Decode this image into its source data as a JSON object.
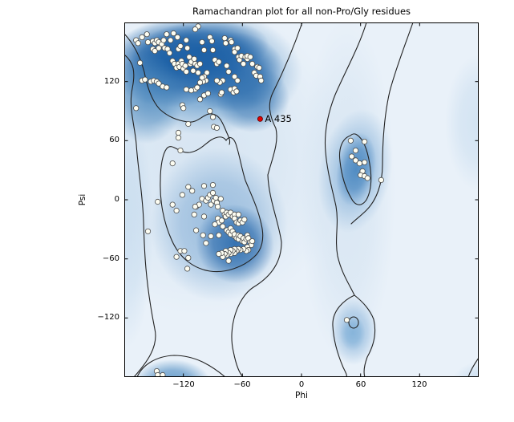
{
  "title": "Ramachandran plot for all non-Pro/Gly residues",
  "axes": {
    "xlabel": "Phi",
    "ylabel": "Psi",
    "xlim": [
      -180,
      180
    ],
    "ylim": [
      -180,
      180
    ],
    "xticks": [
      -120,
      -60,
      0,
      60,
      120
    ],
    "yticks": [
      120,
      60,
      0,
      -60,
      -120
    ],
    "xtick_labels": [
      "−120",
      "−60",
      "0",
      "60",
      "120"
    ],
    "ytick_labels": [
      "120",
      "60",
      "0",
      "−60",
      "−120"
    ]
  },
  "colors": {
    "marker_fill": "#fdfdf2",
    "marker_edge": "#4d4d4d",
    "outlier_fill": "#e00000",
    "outlier_edge": "#5a0000",
    "contour_line": "#222222",
    "density_dark": "#1d61a6",
    "density_light": "#e9f1f9",
    "spine": "#000000"
  },
  "chart_data": {
    "type": "scatter",
    "title": "Ramachandran plot for all non-Pro/Gly residues",
    "xlabel": "Phi",
    "ylabel": "Psi",
    "xlim": [
      -180,
      180
    ],
    "ylim": [
      -180,
      180
    ],
    "background": "blue kernel-density (Blues colormap) of favored regions with two contour levels",
    "legend": "none",
    "series": [
      {
        "name": "non-Pro/Gly residues",
        "marker": "circle",
        "points": [
          [
            -168,
            162
          ],
          [
            -166,
            159
          ],
          [
            -162,
            165
          ],
          [
            -157,
            168
          ],
          [
            -156,
            160
          ],
          [
            -151,
            161
          ],
          [
            -149,
            159
          ],
          [
            -147,
            162
          ],
          [
            -145,
            160
          ],
          [
            -142,
            158
          ],
          [
            -140,
            162
          ],
          [
            -137,
            168
          ],
          [
            -133,
            162
          ],
          [
            -130,
            169
          ],
          [
            -126,
            165
          ],
          [
            -125,
            153
          ],
          [
            -123,
            156
          ],
          [
            -151,
            153
          ],
          [
            -149,
            151
          ],
          [
            -145,
            154
          ],
          [
            -139,
            154
          ],
          [
            -136,
            153
          ],
          [
            -134,
            149
          ],
          [
            -131,
            141
          ],
          [
            -129,
            138
          ],
          [
            -127,
            134
          ],
          [
            -125,
            138
          ],
          [
            -124,
            135
          ],
          [
            -122,
            141
          ],
          [
            -121,
            138
          ],
          [
            -120,
            133
          ],
          [
            -118,
            136
          ],
          [
            -117,
            130
          ],
          [
            -116,
            154
          ],
          [
            -114,
            145
          ],
          [
            -113,
            138
          ],
          [
            -112,
            140
          ],
          [
            -110,
            131
          ],
          [
            -109,
            143
          ],
          [
            -108,
            138
          ],
          [
            -106,
            136
          ],
          [
            -105,
            129
          ],
          [
            -103,
            138
          ],
          [
            -117,
            162
          ],
          [
            -101,
            160
          ],
          [
            -99,
            152
          ],
          [
            -93,
            165
          ],
          [
            -91,
            161
          ],
          [
            -90,
            152
          ],
          [
            -88,
            142
          ],
          [
            -86,
            138
          ],
          [
            -84,
            140
          ],
          [
            -78,
            164
          ],
          [
            -77,
            159
          ],
          [
            -72,
            162
          ],
          [
            -71,
            160
          ],
          [
            -68,
            153
          ],
          [
            -68,
            150
          ],
          [
            -65,
            154
          ],
          [
            -64,
            145
          ],
          [
            -63,
            142
          ],
          [
            -61,
            146
          ],
          [
            -59,
            138
          ],
          [
            -57,
            145
          ],
          [
            -55,
            143
          ],
          [
            -55,
            146
          ],
          [
            -52,
            145
          ],
          [
            -50,
            138
          ],
          [
            -48,
            129
          ],
          [
            -46,
            126
          ],
          [
            -45,
            135
          ],
          [
            -43,
            134
          ],
          [
            -42,
            125
          ],
          [
            -41,
            121
          ],
          [
            -68,
            125
          ],
          [
            -65,
            121
          ],
          [
            -74,
            130
          ],
          [
            -76,
            136
          ],
          [
            -80,
            121
          ],
          [
            -83,
            119
          ],
          [
            -86,
            121
          ],
          [
            -96,
            129
          ],
          [
            -97,
            121
          ],
          [
            -99,
            125
          ],
          [
            -100,
            120
          ],
          [
            -101,
            124
          ],
          [
            -103,
            119
          ],
          [
            -108,
            112
          ],
          [
            -106,
            114
          ],
          [
            -112,
            111
          ],
          [
            -117,
            112
          ],
          [
            -121,
            96
          ],
          [
            -120,
            93
          ],
          [
            -93,
            90
          ],
          [
            -90,
            84
          ],
          [
            -89,
            74
          ],
          [
            -103,
            102
          ],
          [
            -99,
            106
          ],
          [
            -95,
            108
          ],
          [
            -82,
            107
          ],
          [
            -81,
            109
          ],
          [
            -72,
            112
          ],
          [
            -69,
            109
          ],
          [
            -68,
            113
          ],
          [
            -66,
            110
          ],
          [
            -164,
            139
          ],
          [
            -162,
            121
          ],
          [
            -159,
            122
          ],
          [
            -153,
            120
          ],
          [
            -150,
            121
          ],
          [
            -147,
            120
          ],
          [
            -145,
            118
          ],
          [
            -141,
            115
          ],
          [
            -137,
            114
          ],
          [
            -168,
            93
          ],
          [
            -115,
            77
          ],
          [
            -86,
            73
          ],
          [
            -105,
            176
          ],
          [
            -108,
            173
          ],
          [
            -125,
            68
          ],
          [
            -125,
            63
          ],
          [
            -123,
            50
          ],
          [
            -131,
            37
          ],
          [
            -115,
            13
          ],
          [
            -99,
            14
          ],
          [
            -90,
            15
          ],
          [
            -121,
            5
          ],
          [
            -111,
            9
          ],
          [
            -101,
            1
          ],
          [
            -97,
            -1
          ],
          [
            -95,
            2
          ],
          [
            -93,
            5
          ],
          [
            -92,
            -5
          ],
          [
            -90,
            7
          ],
          [
            -89,
            -1
          ],
          [
            -87,
            2
          ],
          [
            -86,
            -3
          ],
          [
            -85,
            -7
          ],
          [
            -82,
            1
          ],
          [
            -80,
            -11
          ],
          [
            -78,
            -15
          ],
          [
            -77,
            -17
          ],
          [
            -76,
            -13
          ],
          [
            -74,
            -15
          ],
          [
            -72,
            -13
          ],
          [
            -70,
            -17
          ],
          [
            -68,
            -15
          ],
          [
            -68,
            -19
          ],
          [
            -66,
            -23
          ],
          [
            -64,
            -15
          ],
          [
            -64,
            -24
          ],
          [
            -62,
            -21
          ],
          [
            -60,
            -23
          ],
          [
            -58,
            -20
          ],
          [
            -107,
            -7
          ],
          [
            -109,
            -15
          ],
          [
            -99,
            -17
          ],
          [
            -85,
            -19
          ],
          [
            -84,
            -23
          ],
          [
            -81,
            -21
          ],
          [
            -88,
            -25
          ],
          [
            -80,
            -27
          ],
          [
            -76,
            -31
          ],
          [
            -74,
            -33
          ],
          [
            -72,
            -29
          ],
          [
            -72,
            -35
          ],
          [
            -70,
            -32
          ],
          [
            -68,
            -37
          ],
          [
            -68,
            -35
          ],
          [
            -66,
            -39
          ],
          [
            -64,
            -36
          ],
          [
            -64,
            -40
          ],
          [
            -62,
            -37
          ],
          [
            -60,
            -42
          ],
          [
            -59,
            -39
          ],
          [
            -58,
            -43
          ],
          [
            -56,
            -40
          ],
          [
            -55,
            -36
          ],
          [
            -54,
            -39
          ],
          [
            -52,
            -43
          ],
          [
            -51,
            -46
          ],
          [
            -50,
            -42
          ],
          [
            -55,
            -48
          ],
          [
            -54,
            -51
          ],
          [
            -56,
            -52
          ],
          [
            -59,
            -50
          ],
          [
            -62,
            -51
          ],
          [
            -64,
            -50
          ],
          [
            -66,
            -52
          ],
          [
            -68,
            -54
          ],
          [
            -68,
            -50
          ],
          [
            -70,
            -52
          ],
          [
            -72,
            -55
          ],
          [
            -72,
            -51
          ],
          [
            -74,
            -54
          ],
          [
            -76,
            -56
          ],
          [
            -77,
            -52
          ],
          [
            -78,
            -55
          ],
          [
            -80,
            -58
          ],
          [
            -81,
            -54
          ],
          [
            -84,
            -36
          ],
          [
            -92,
            -37
          ],
          [
            -97,
            -44
          ],
          [
            -100,
            -36
          ],
          [
            -104,
            -5
          ],
          [
            -108,
            -7
          ],
          [
            -123,
            -52
          ],
          [
            -119,
            -52
          ],
          [
            -127,
            -58
          ],
          [
            -115,
            -59
          ],
          [
            -84,
            -55
          ],
          [
            -74,
            -62
          ],
          [
            -116,
            -70
          ],
          [
            -156,
            -32
          ],
          [
            -146,
            -2
          ],
          [
            -131,
            -5
          ],
          [
            -127,
            -11
          ],
          [
            -107,
            -31
          ],
          [
            50,
            60
          ],
          [
            64,
            59
          ],
          [
            55,
            50
          ],
          [
            51,
            44
          ],
          [
            55,
            40
          ],
          [
            59,
            37
          ],
          [
            64,
            38
          ],
          [
            62,
            29
          ],
          [
            60,
            25
          ],
          [
            64,
            24
          ],
          [
            67,
            22
          ],
          [
            81,
            20
          ],
          [
            -147,
            -174
          ],
          [
            -146,
            -178
          ],
          [
            -141,
            -178
          ],
          [
            46,
            -122
          ]
        ]
      },
      {
        "name": "flagged residue",
        "marker": "circle",
        "label": "A 435",
        "points": [
          [
            -42,
            82
          ]
        ]
      }
    ]
  }
}
